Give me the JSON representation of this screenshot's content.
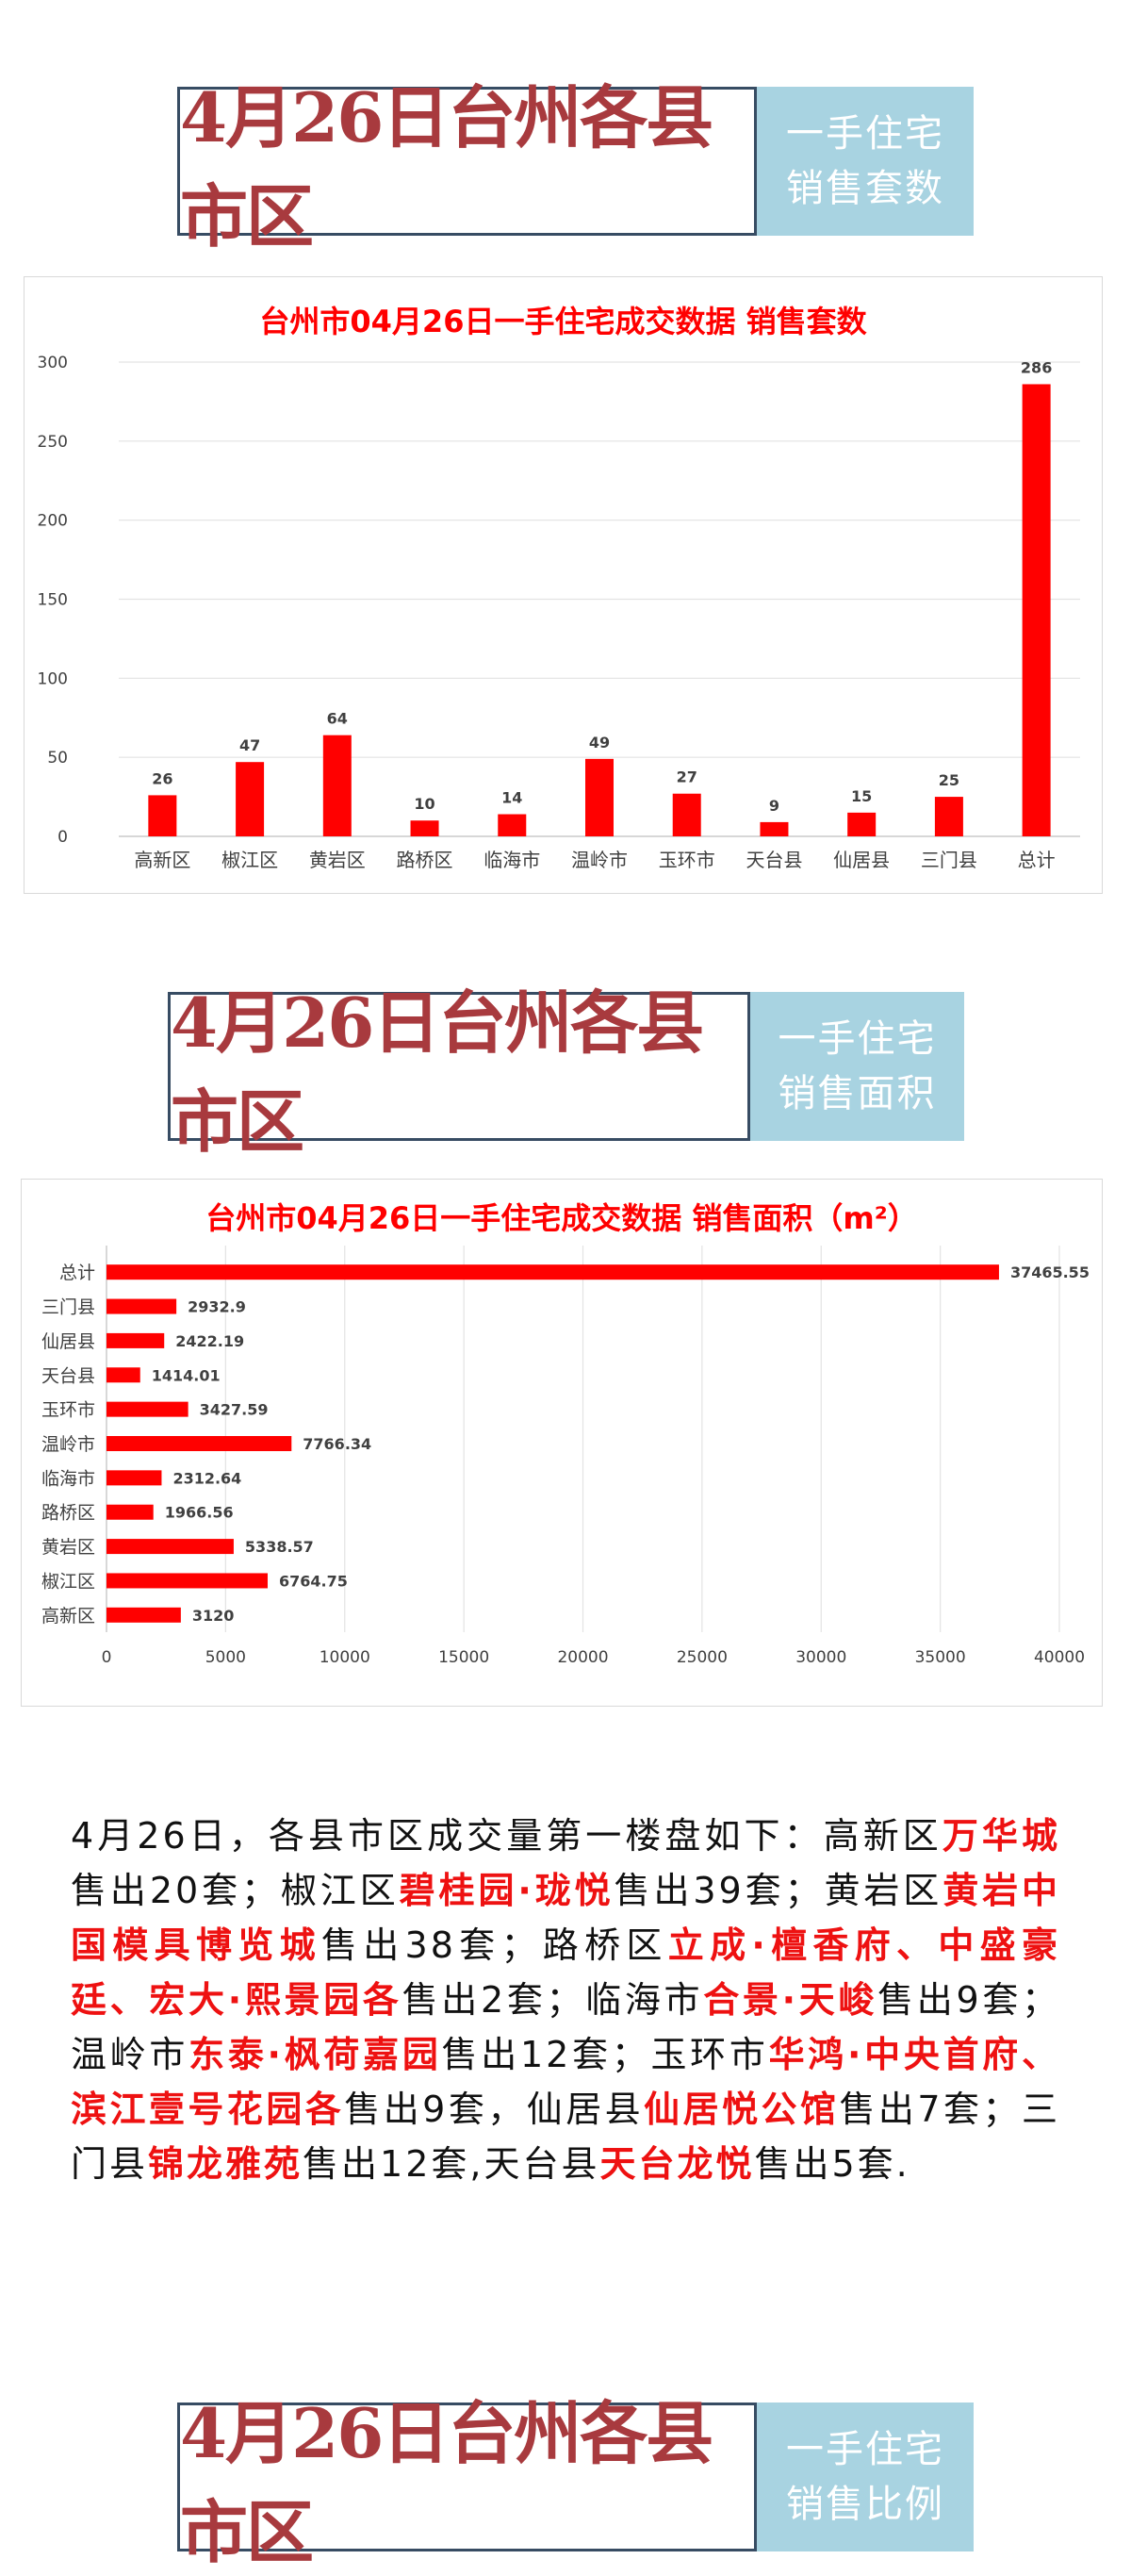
{
  "banners": [
    {
      "main": "4月26日台州各县市区",
      "side": [
        "一手住宅",
        "销售套数"
      ]
    },
    {
      "main": "4月26日台州各县市区",
      "side": [
        "一手住宅",
        "销售面积"
      ]
    },
    {
      "main": "4月26日台州各县市区",
      "side": [
        "一手住宅",
        "销售比例"
      ]
    }
  ],
  "colors": {
    "bar": "#ff0000",
    "title": "#ff0000",
    "banner_text": "#a83a3e",
    "banner_side": "#a8d3e1",
    "banner_border": "#374c63",
    "highlight": "#ee1111"
  },
  "chart_data": [
    {
      "type": "bar",
      "title": "台州市04月26日一手住宅成交数据 销售套数",
      "categories": [
        "高新区",
        "椒江区",
        "黄岩区",
        "路桥区",
        "临海市",
        "温岭市",
        "玉环市",
        "天台县",
        "仙居县",
        "三门县",
        "总计"
      ],
      "values": [
        26,
        47,
        64,
        10,
        14,
        49,
        27,
        9,
        15,
        25,
        286
      ],
      "ylim": [
        0,
        300
      ],
      "yticks": [
        "0",
        "50",
        "100",
        "150",
        "200",
        "250",
        "300"
      ],
      "grid": true,
      "legend": "none"
    },
    {
      "type": "bar",
      "orientation": "horizontal",
      "title": "台州市04月26日一手住宅成交数据 销售面积（m²）",
      "categories": [
        "总计",
        "三门县",
        "仙居县",
        "天台县",
        "玉环市",
        "温岭市",
        "临海市",
        "路桥区",
        "黄岩区",
        "椒江区",
        "高新区"
      ],
      "values": [
        37465.55,
        2932.9,
        2422.19,
        1414.01,
        3427.59,
        7766.34,
        2312.64,
        1966.56,
        5338.57,
        6764.75,
        3120
      ],
      "value_labels": [
        "37465.55",
        "2932.9",
        "2422.19",
        "1414.01",
        "3427.59",
        "7766.34",
        "2312.64",
        "1966.56",
        "5338.57",
        "6764.75",
        "3120"
      ],
      "xlim": [
        0,
        40000
      ],
      "xticks": [
        "0",
        "5000",
        "10000",
        "15000",
        "20000",
        "25000",
        "30000",
        "35000",
        "40000"
      ],
      "grid": true,
      "legend": "none"
    }
  ],
  "paragraph": [
    {
      "t": "4月26日，各县市区成交量第一楼盘如下：高新区"
    },
    {
      "t": "万华城",
      "hl": true
    },
    {
      "t": "售出20套；椒江区"
    },
    {
      "t": "碧桂园·珑悦",
      "hl": true
    },
    {
      "t": "售出39套；黄岩区"
    },
    {
      "t": "黄岩中国模具博览城",
      "hl": true
    },
    {
      "t": "售出38套；路桥区"
    },
    {
      "t": "立成·檀香府、中盛豪廷、宏大·熙景园各",
      "hl": true
    },
    {
      "t": "售出2套；临海市"
    },
    {
      "t": "合景·天峻",
      "hl": true
    },
    {
      "t": "售出9套；温岭市"
    },
    {
      "t": "东泰·枫荷嘉园",
      "hl": true
    },
    {
      "t": "售出12套；玉环市"
    },
    {
      "t": "华鸿·中央首府、滨江壹号花园各",
      "hl": true
    },
    {
      "t": "售出9套，仙居县"
    },
    {
      "t": "仙居悦公馆",
      "hl": true
    },
    {
      "t": "售出7套；三门县"
    },
    {
      "t": "锦龙雅苑",
      "hl": true
    },
    {
      "t": "售出12套,天台县"
    },
    {
      "t": "天台龙悦",
      "hl": true
    },
    {
      "t": "售出5套."
    }
  ]
}
